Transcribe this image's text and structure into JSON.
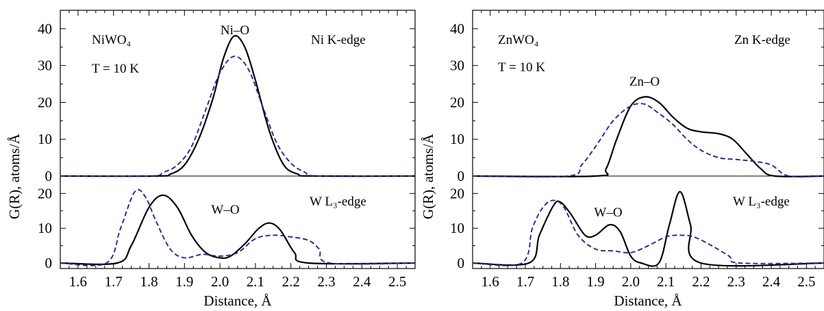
{
  "chart_data": [
    {
      "type": "line",
      "ylabel": "G(R),  atoms/Å",
      "xlabel": "Distance, Å",
      "xlim": [
        1.55,
        2.55
      ],
      "x_ticks": [
        1.6,
        1.7,
        1.8,
        1.9,
        2.0,
        2.1,
        2.2,
        2.3,
        2.4,
        2.5
      ],
      "top": {
        "sample": "NiWO₄",
        "temperature": "T = 10 K",
        "edge": "Ni K-edge",
        "bond": "Ni–O",
        "ylim": [
          0,
          45
        ],
        "y_ticks": [
          0,
          10,
          20,
          30,
          40
        ],
        "series": [
          {
            "style": "solid",
            "x": [
              1.55,
              1.82,
              1.86,
              1.9,
              1.94,
              1.98,
              2.01,
              2.04,
              2.07,
              2.1,
              2.14,
              2.18,
              2.22,
              2.26,
              2.55
            ],
            "values": [
              0,
              0,
              0.5,
              3,
              10,
              21,
              32,
              38,
              35,
              26,
              12,
              3,
              0.5,
              0,
              0
            ]
          },
          {
            "style": "dashed",
            "x": [
              1.55,
              1.8,
              1.84,
              1.88,
              1.92,
              1.96,
              2.0,
              2.04,
              2.08,
              2.12,
              2.16,
              2.2,
              2.24,
              2.28,
              2.55
            ],
            "values": [
              0,
              0,
              1,
              3,
              8,
              18,
              28,
              32.5,
              29,
              19,
              9,
              3.5,
              1,
              0,
              0
            ]
          }
        ]
      },
      "bottom": {
        "edge": "W L₃-edge",
        "bond": "W–O",
        "ylim": [
          0,
          25
        ],
        "y_ticks": [
          0,
          10,
          20
        ],
        "series": [
          {
            "style": "solid",
            "x": [
              1.55,
              1.71,
              1.75,
              1.8,
              1.84,
              1.88,
              1.92,
              1.96,
              2.0,
              2.03,
              2.07,
              2.11,
              2.14,
              2.17,
              2.21,
              2.25,
              2.55
            ],
            "values": [
              0,
              0,
              5,
              16,
              19.5,
              16,
              8,
              3,
              1.5,
              2,
              5.5,
              10,
              11.5,
              9.5,
              3,
              0,
              0
            ]
          },
          {
            "style": "dashed",
            "x": [
              1.55,
              1.68,
              1.72,
              1.76,
              1.79,
              1.82,
              1.86,
              1.9,
              1.95,
              2.0,
              2.05,
              2.1,
              2.15,
              2.2,
              2.25,
              2.28,
              2.31,
              2.55
            ],
            "values": [
              0,
              0,
              10,
              20.5,
              19,
              12,
              4,
              1.5,
              2.5,
              2,
              3,
              7,
              8,
              7.5,
              6.5,
              4,
              0,
              0
            ]
          }
        ]
      }
    },
    {
      "type": "line",
      "ylabel": "G(R),  atoms/Å",
      "xlabel": "Distance, Å",
      "xlim": [
        1.55,
        2.55
      ],
      "x_ticks": [
        1.6,
        1.7,
        1.8,
        1.9,
        2.0,
        2.1,
        2.2,
        2.3,
        2.4,
        2.5
      ],
      "top": {
        "sample": "ZnWO₄",
        "temperature": "T = 10 K",
        "edge": "Zn K-edge",
        "bond": "Zn–O",
        "ylim": [
          0,
          45
        ],
        "y_ticks": [
          0,
          10,
          20,
          30,
          40
        ],
        "series": [
          {
            "style": "solid",
            "x": [
              1.55,
              1.9,
              1.93,
              1.96,
              2.0,
              2.04,
              2.08,
              2.12,
              2.16,
              2.2,
              2.25,
              2.29,
              2.33,
              2.37,
              2.41,
              2.55
            ],
            "values": [
              0,
              0,
              2,
              10,
              19,
              21.5,
              20,
              16,
              13,
              12,
              11.5,
              10,
              6,
              2,
              0,
              0
            ]
          },
          {
            "style": "dashed",
            "x": [
              1.55,
              1.82,
              1.86,
              1.9,
              1.95,
              2.0,
              2.04,
              2.08,
              2.12,
              2.16,
              2.2,
              2.25,
              2.3,
              2.35,
              2.4,
              2.45,
              2.55
            ],
            "values": [
              0,
              0,
              3,
              8,
              15,
              19,
              19.5,
              17,
              14,
              10,
              7,
              5,
              4.5,
              4,
              3,
              0,
              0
            ]
          }
        ]
      },
      "bottom": {
        "edge": "W L₃-edge",
        "bond": "W–O",
        "ylim": [
          0,
          25
        ],
        "y_ticks": [
          0,
          10,
          20
        ],
        "series": [
          {
            "style": "solid",
            "x": [
              1.55,
              1.71,
              1.74,
              1.78,
              1.8,
              1.83,
              1.87,
              1.9,
              1.94,
              1.97,
              2.0,
              2.03,
              2.08,
              2.11,
              2.14,
              2.17,
              2.2,
              2.55
            ],
            "values": [
              0,
              0,
              8,
              16.5,
              17.5,
              14,
              8,
              8,
              11,
              9,
              2,
              0,
              0,
              11,
              20.5,
              11,
              0,
              0
            ]
          },
          {
            "style": "dashed",
            "x": [
              1.55,
              1.69,
              1.72,
              1.75,
              1.78,
              1.81,
              1.85,
              1.9,
              1.95,
              2.0,
              2.05,
              2.1,
              2.14,
              2.18,
              2.23,
              2.28,
              2.31,
              2.55
            ],
            "values": [
              0,
              0,
              10,
              16,
              18,
              16,
              8,
              4,
              3.5,
              3,
              5,
              7.5,
              8,
              7.5,
              5,
              2,
              0,
              0
            ]
          }
        ]
      }
    }
  ]
}
